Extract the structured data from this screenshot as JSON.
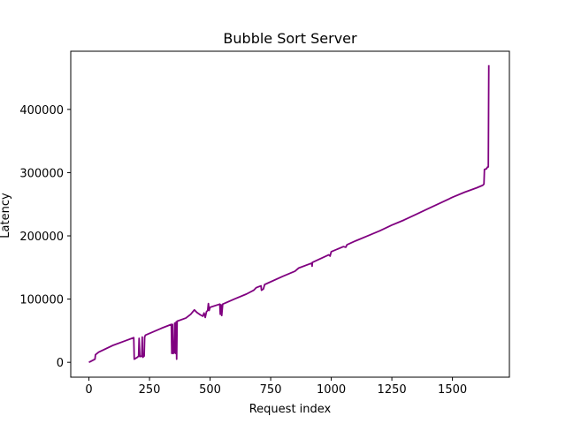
{
  "chart_data": {
    "type": "line",
    "title": "Bubble Sort Server",
    "xlabel": "Request index",
    "ylabel": "Latency",
    "xlim": [
      -75,
      1735
    ],
    "ylim": [
      -23500,
      492000
    ],
    "xticks": [
      0,
      250,
      500,
      750,
      1000,
      1250,
      1500
    ],
    "yticks": [
      0,
      100000,
      200000,
      300000,
      400000
    ],
    "ytick_labels": [
      "0",
      "100000",
      "200000",
      "300000",
      "400000"
    ],
    "grid": false,
    "legend": "none",
    "series": [
      {
        "color": "#800080",
        "points": [
          [
            0,
            0
          ],
          [
            20,
            4000
          ],
          [
            25,
            5000
          ],
          [
            27,
            12000
          ],
          [
            40,
            16000
          ],
          [
            100,
            27000
          ],
          [
            150,
            34000
          ],
          [
            185,
            39000
          ],
          [
            187,
            5000
          ],
          [
            200,
            8000
          ],
          [
            205,
            10000
          ],
          [
            207,
            38000
          ],
          [
            210,
            9000
          ],
          [
            218,
            10000
          ],
          [
            220,
            40000
          ],
          [
            222,
            8000
          ],
          [
            228,
            10000
          ],
          [
            230,
            40000
          ],
          [
            233,
            43000
          ],
          [
            300,
            54000
          ],
          [
            340,
            60000
          ],
          [
            342,
            14000
          ],
          [
            345,
            60000
          ],
          [
            347,
            14000
          ],
          [
            352,
            15000
          ],
          [
            354,
            62000
          ],
          [
            358,
            14000
          ],
          [
            360,
            64000
          ],
          [
            362,
            5000
          ],
          [
            364,
            65000
          ],
          [
            400,
            70000
          ],
          [
            420,
            76000
          ],
          [
            435,
            83000
          ],
          [
            445,
            79000
          ],
          [
            460,
            75000
          ],
          [
            470,
            73000
          ],
          [
            475,
            78000
          ],
          [
            480,
            71000
          ],
          [
            485,
            80000
          ],
          [
            490,
            82000
          ],
          [
            493,
            93000
          ],
          [
            496,
            82000
          ],
          [
            500,
            87000
          ],
          [
            540,
            92000
          ],
          [
            542,
            76000
          ],
          [
            545,
            91000
          ],
          [
            548,
            74000
          ],
          [
            552,
            92000
          ],
          [
            600,
            100000
          ],
          [
            650,
            108000
          ],
          [
            680,
            114000
          ],
          [
            690,
            118000
          ],
          [
            710,
            121000
          ],
          [
            712,
            114000
          ],
          [
            720,
            116000
          ],
          [
            725,
            123000
          ],
          [
            800,
            136000
          ],
          [
            850,
            144000
          ],
          [
            865,
            149000
          ],
          [
            920,
            157000
          ],
          [
            921,
            152000
          ],
          [
            922,
            158000
          ],
          [
            990,
            170000
          ],
          [
            995,
            168000
          ],
          [
            1000,
            175000
          ],
          [
            1050,
            183000
          ],
          [
            1060,
            182000
          ],
          [
            1065,
            186000
          ],
          [
            1100,
            192000
          ],
          [
            1150,
            200000
          ],
          [
            1200,
            208000
          ],
          [
            1250,
            217000
          ],
          [
            1300,
            225000
          ],
          [
            1350,
            234000
          ],
          [
            1400,
            243000
          ],
          [
            1450,
            252000
          ],
          [
            1500,
            261000
          ],
          [
            1550,
            269000
          ],
          [
            1600,
            276000
          ],
          [
            1625,
            280000
          ],
          [
            1630,
            282000
          ],
          [
            1632,
            305000
          ],
          [
            1640,
            306000
          ],
          [
            1645,
            309000
          ],
          [
            1648,
            309000
          ],
          [
            1650,
            470000
          ]
        ]
      }
    ]
  }
}
